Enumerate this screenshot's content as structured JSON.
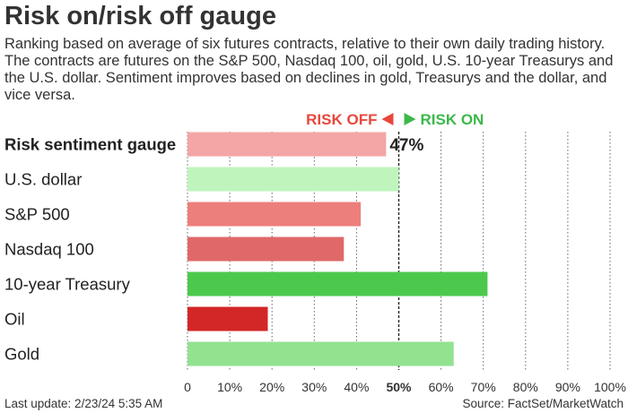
{
  "title": "Risk on/risk off gauge",
  "subtitle": "Ranking based on average of six futures contracts, relative to their own daily trading history. The contracts are futures on the S&P 500, Nasdaq 100, oil, gold, U.S. 10-year Treasurys and the U.S. dollar. Sentiment improves based on declines in gold, Treasurys and the dollar, and vice versa.",
  "legend": {
    "risk_off": "RISK OFF",
    "risk_on": "RISK ON"
  },
  "footer": {
    "left": "Last update: 2/23/24 5:35 AM",
    "right": "Source: FactSet/MarketWatch"
  },
  "colors": {
    "risk_off": "#e8473c",
    "risk_on": "#3cb84a",
    "grid": "#666666",
    "grid_center": "#222222"
  },
  "chart_data": {
    "type": "bar",
    "orientation": "horizontal",
    "categories": [
      "Risk sentiment gauge",
      "U.S. dollar",
      "S&P 500",
      "Nasdaq 100",
      "10-year Treasury",
      "Oil",
      "Gold"
    ],
    "values": [
      47,
      50,
      41,
      37,
      71,
      19,
      63
    ],
    "bar_colors": [
      "#f4a5a5",
      "#bff5bd",
      "#ec7f7b",
      "#e06868",
      "#4cc94c",
      "#d32626",
      "#93e290"
    ],
    "data_labels": [
      {
        "category": "Risk sentiment gauge",
        "text": "47%"
      }
    ],
    "xlim": [
      0,
      100
    ],
    "xticks": [
      0,
      10,
      20,
      30,
      40,
      50,
      60,
      70,
      80,
      90,
      100
    ],
    "xtick_labels": [
      "0",
      "10%",
      "20%",
      "30%",
      "40%",
      "50%",
      "60%",
      "70%",
      "80%",
      "90%",
      "100%"
    ],
    "highlight_tick": 50,
    "grid": "vertical-dotted"
  }
}
